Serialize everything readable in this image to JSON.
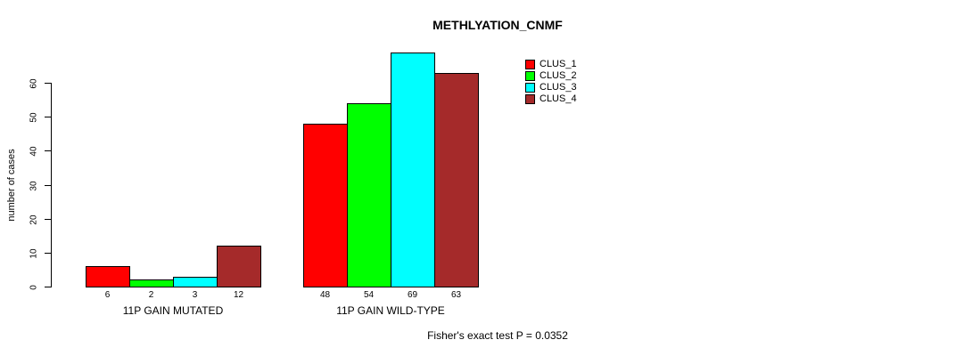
{
  "title": "METHLYATION_CNMF",
  "y_axis_label": "number of cases",
  "footer_note": "Fisher's exact test P = 0.0352",
  "chart_data": {
    "type": "bar",
    "title": "METHLYATION_CNMF",
    "xlabel": "",
    "ylabel": "number of cases",
    "categories": [
      "11P GAIN MUTATED",
      "11P GAIN WILD-TYPE"
    ],
    "series": [
      {
        "name": "CLUS_1",
        "color": "#FF0000",
        "values": [
          6,
          48
        ]
      },
      {
        "name": "CLUS_2",
        "color": "#00FF00",
        "values": [
          2,
          54
        ]
      },
      {
        "name": "CLUS_3",
        "color": "#00FFFF",
        "values": [
          3,
          69
        ]
      },
      {
        "name": "CLUS_4",
        "color": "#A52A2A",
        "values": [
          12,
          63
        ]
      }
    ],
    "bar_value_labels": [
      [
        "6",
        "2",
        "3",
        "12"
      ],
      [
        "48",
        "54",
        "69",
        "63"
      ]
    ],
    "yticks": [
      0,
      10,
      20,
      30,
      40,
      50,
      60
    ],
    "ylim": [
      0,
      69
    ],
    "grid": false,
    "legend_position": "top-right",
    "legend": [
      "CLUS_1",
      "CLUS_2",
      "CLUS_3",
      "CLUS_4"
    ],
    "annotation": "Fisher's exact test P = 0.0352"
  }
}
